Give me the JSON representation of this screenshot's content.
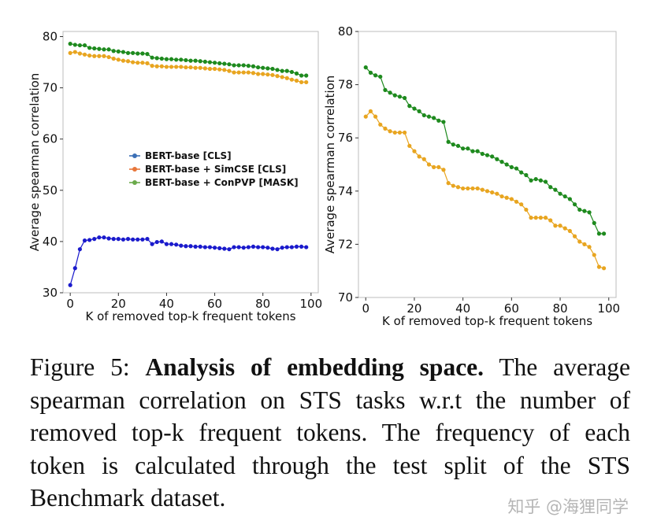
{
  "chart_data": [
    {
      "type": "line",
      "xlabel": "K of removed top-k frequent tokens",
      "ylabel": "Average spearman correlation",
      "xlim": [
        -3,
        103
      ],
      "ylim": [
        30,
        81
      ],
      "xticks": [
        0,
        20,
        40,
        60,
        80,
        100
      ],
      "yticks": [
        30,
        40,
        50,
        60,
        70,
        80
      ],
      "grid": false,
      "legend_position": "center-left",
      "x": [
        0,
        2,
        4,
        6,
        8,
        10,
        12,
        14,
        16,
        18,
        20,
        22,
        24,
        26,
        28,
        30,
        32,
        34,
        36,
        38,
        40,
        42,
        44,
        46,
        48,
        50,
        52,
        54,
        56,
        58,
        60,
        62,
        64,
        66,
        68,
        70,
        72,
        74,
        76,
        78,
        80,
        82,
        84,
        86,
        88,
        90,
        92,
        94,
        96,
        98
      ],
      "series": [
        {
          "name": "BERT-base [CLS]",
          "color": "#1a1acc",
          "values": [
            31.5,
            34.8,
            38.5,
            40.2,
            40.3,
            40.5,
            40.8,
            40.8,
            40.6,
            40.5,
            40.5,
            40.4,
            40.5,
            40.4,
            40.4,
            40.4,
            40.5,
            39.5,
            39.9,
            40.0,
            39.5,
            39.5,
            39.4,
            39.2,
            39.1,
            39.1,
            39.0,
            39.0,
            38.9,
            38.9,
            38.8,
            38.7,
            38.6,
            38.5,
            38.9,
            38.9,
            38.8,
            38.9,
            39.0,
            38.9,
            38.9,
            38.8,
            38.6,
            38.5,
            38.8,
            38.9,
            38.9,
            39.0,
            39.0,
            38.9
          ]
        },
        {
          "name": "BERT-base + SimCSE [CLS]",
          "color": "#e8a520",
          "values": [
            76.8,
            77.0,
            76.7,
            76.5,
            76.3,
            76.2,
            76.2,
            76.2,
            76.0,
            75.7,
            75.5,
            75.3,
            75.2,
            75.0,
            74.9,
            74.9,
            74.8,
            74.3,
            74.2,
            74.2,
            74.1,
            74.1,
            74.1,
            74.1,
            74.0,
            74.0,
            73.9,
            73.9,
            73.8,
            73.7,
            73.7,
            73.6,
            73.5,
            73.3,
            73.0,
            73.0,
            73.0,
            73.0,
            72.9,
            72.7,
            72.7,
            72.6,
            72.5,
            72.3,
            72.1,
            71.9,
            71.6,
            71.4,
            71.1,
            71.1
          ]
        },
        {
          "name": "BERT-base + ConPVP [MASK]",
          "color": "#1e8a1e",
          "values": [
            78.6,
            78.4,
            78.3,
            78.3,
            77.8,
            77.7,
            77.6,
            77.5,
            77.5,
            77.2,
            77.1,
            77.0,
            76.8,
            76.8,
            76.7,
            76.7,
            76.6,
            75.9,
            75.8,
            75.7,
            75.6,
            75.6,
            75.5,
            75.5,
            75.4,
            75.3,
            75.3,
            75.2,
            75.1,
            75.0,
            74.9,
            74.8,
            74.7,
            74.6,
            74.4,
            74.4,
            74.4,
            74.3,
            74.2,
            74.0,
            73.9,
            73.8,
            73.7,
            73.5,
            73.3,
            73.3,
            73.1,
            72.8,
            72.4,
            72.4
          ]
        }
      ]
    },
    {
      "type": "line",
      "xlabel": "K of removed top-k frequent tokens",
      "ylabel": "Average spearman correlation",
      "xlim": [
        -3,
        103
      ],
      "ylim": [
        70,
        80
      ],
      "xticks": [
        0,
        20,
        40,
        60,
        80,
        100
      ],
      "yticks": [
        70,
        72,
        74,
        76,
        78,
        80
      ],
      "grid": false,
      "x": [
        0,
        2,
        4,
        6,
        8,
        10,
        12,
        14,
        16,
        18,
        20,
        22,
        24,
        26,
        28,
        30,
        32,
        34,
        36,
        38,
        40,
        42,
        44,
        46,
        48,
        50,
        52,
        54,
        56,
        58,
        60,
        62,
        64,
        66,
        68,
        70,
        72,
        74,
        76,
        78,
        80,
        82,
        84,
        86,
        88,
        90,
        92,
        94,
        96,
        98
      ],
      "series": [
        {
          "color": "#e8a520",
          "values": [
            76.8,
            77.0,
            76.8,
            76.5,
            76.35,
            76.25,
            76.2,
            76.2,
            76.2,
            75.7,
            75.5,
            75.3,
            75.2,
            75.0,
            74.9,
            74.9,
            74.8,
            74.3,
            74.2,
            74.15,
            74.1,
            74.1,
            74.1,
            74.1,
            74.05,
            74.0,
            73.95,
            73.9,
            73.8,
            73.75,
            73.7,
            73.6,
            73.5,
            73.3,
            73.0,
            73.0,
            73.0,
            73.0,
            72.9,
            72.7,
            72.7,
            72.6,
            72.5,
            72.3,
            72.1,
            72.0,
            71.9,
            71.6,
            71.15,
            71.1
          ]
        },
        {
          "color": "#1e8a1e",
          "values": [
            78.65,
            78.45,
            78.35,
            78.3,
            77.8,
            77.7,
            77.6,
            77.55,
            77.5,
            77.2,
            77.1,
            77.0,
            76.85,
            76.8,
            76.75,
            76.65,
            76.6,
            75.85,
            75.75,
            75.7,
            75.6,
            75.6,
            75.5,
            75.5,
            75.4,
            75.35,
            75.3,
            75.2,
            75.1,
            75.0,
            74.9,
            74.85,
            74.7,
            74.6,
            74.4,
            74.45,
            74.4,
            74.35,
            74.15,
            74.05,
            73.9,
            73.8,
            73.7,
            73.5,
            73.3,
            73.25,
            73.2,
            72.8,
            72.4,
            72.4
          ]
        }
      ]
    }
  ],
  "caption": {
    "figure_label": "Figure 5:",
    "bold_title": "Analysis of embedding space.",
    "body": "The average spearman correlation on STS tasks w.r.t the number of removed top-k frequent tokens. The frequency of each token is calculated through the test split of the STS Benchmark dataset."
  },
  "watermark": "知乎 @海狸同学"
}
